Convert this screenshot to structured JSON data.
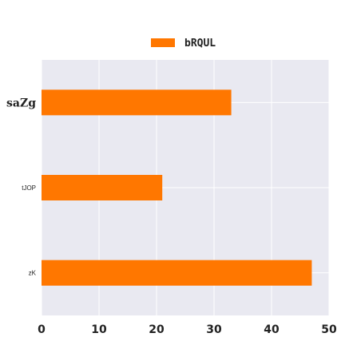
{
  "chart_data": {
    "type": "bar",
    "orientation": "horizontal",
    "categories": [
      "saZg",
      "tJOP",
      "zK"
    ],
    "series": [
      {
        "name": "bRQUL",
        "values": [
          33,
          21,
          47
        ],
        "color": "#ff7700"
      }
    ],
    "xlim": [
      0,
      50
    ],
    "xticks": [
      "0",
      "10",
      "20",
      "30",
      "40",
      "50"
    ],
    "grid": true,
    "legend_position": "top-center",
    "background_color": "#e9e9f1",
    "title": "",
    "xlabel": "",
    "ylabel": ""
  }
}
